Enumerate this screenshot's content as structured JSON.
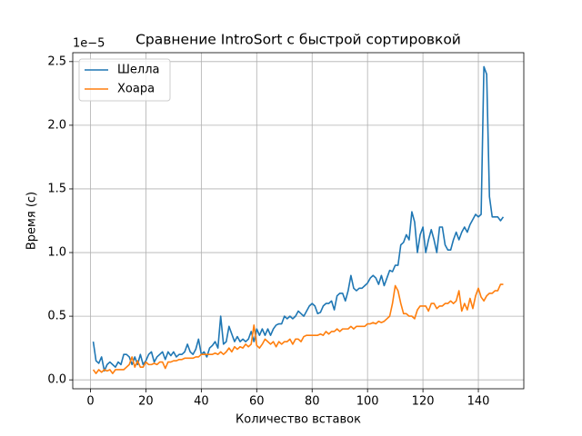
{
  "chart_data": {
    "type": "line",
    "title": "Сравнение IntroSort с быстрой сортировкой",
    "xlabel": "Количество вставок",
    "ylabel": "Время (с)",
    "y_offset_label": "1e−5",
    "legend": "upper left",
    "grid": true,
    "xlim": [
      -6.4,
      156.4
    ],
    "ylim": [
      -0.07,
      2.57
    ],
    "xticks": [
      0,
      20,
      40,
      60,
      80,
      100,
      120,
      140
    ],
    "yticks": [
      {
        "value": 0,
        "label": "0.0"
      },
      {
        "value": 0.5,
        "label": "0.5"
      },
      {
        "value": 1,
        "label": "1.0"
      },
      {
        "value": 1.5,
        "label": "1.5"
      },
      {
        "value": 2,
        "label": "2.0"
      },
      {
        "value": 2.5,
        "label": "2.5"
      }
    ],
    "x": [
      1,
      2,
      3,
      4,
      5,
      6,
      7,
      8,
      9,
      10,
      11,
      12,
      13,
      14,
      15,
      16,
      17,
      18,
      19,
      20,
      21,
      22,
      23,
      24,
      25,
      26,
      27,
      28,
      29,
      30,
      31,
      32,
      33,
      34,
      35,
      36,
      37,
      38,
      39,
      40,
      41,
      42,
      43,
      44,
      45,
      46,
      47,
      48,
      49,
      50,
      51,
      52,
      53,
      54,
      55,
      56,
      57,
      58,
      59,
      60,
      61,
      62,
      63,
      64,
      65,
      66,
      67,
      68,
      69,
      70,
      71,
      72,
      73,
      74,
      75,
      76,
      77,
      78,
      79,
      80,
      81,
      82,
      83,
      84,
      85,
      86,
      87,
      88,
      89,
      90,
      91,
      92,
      93,
      94,
      95,
      96,
      97,
      98,
      99,
      100,
      101,
      102,
      103,
      104,
      105,
      106,
      107,
      108,
      109,
      110,
      111,
      112,
      113,
      114,
      115,
      116,
      117,
      118,
      119,
      120,
      121,
      122,
      123,
      124,
      125,
      126,
      127,
      128,
      129,
      130,
      131,
      132,
      133,
      134,
      135,
      136,
      137,
      138,
      139,
      140,
      141,
      142,
      143,
      144,
      145,
      146,
      147,
      148,
      149
    ],
    "series": [
      {
        "name": "Шелла",
        "color": "#1f77b4",
        "values": [
          0.3,
          0.15,
          0.13,
          0.18,
          0.07,
          0.12,
          0.14,
          0.12,
          0.1,
          0.14,
          0.12,
          0.2,
          0.2,
          0.18,
          0.12,
          0.18,
          0.12,
          0.2,
          0.12,
          0.15,
          0.2,
          0.22,
          0.14,
          0.18,
          0.2,
          0.22,
          0.16,
          0.22,
          0.19,
          0.22,
          0.18,
          0.2,
          0.2,
          0.22,
          0.28,
          0.22,
          0.2,
          0.24,
          0.32,
          0.2,
          0.22,
          0.18,
          0.25,
          0.27,
          0.3,
          0.25,
          0.5,
          0.28,
          0.3,
          0.42,
          0.36,
          0.3,
          0.34,
          0.3,
          0.32,
          0.3,
          0.32,
          0.38,
          0.3,
          0.4,
          0.35,
          0.4,
          0.35,
          0.4,
          0.35,
          0.4,
          0.43,
          0.44,
          0.44,
          0.5,
          0.48,
          0.5,
          0.48,
          0.5,
          0.54,
          0.52,
          0.5,
          0.54,
          0.58,
          0.6,
          0.58,
          0.52,
          0.53,
          0.58,
          0.6,
          0.6,
          0.62,
          0.55,
          0.66,
          0.68,
          0.68,
          0.62,
          0.7,
          0.82,
          0.72,
          0.7,
          0.72,
          0.72,
          0.74,
          0.76,
          0.8,
          0.82,
          0.8,
          0.75,
          0.82,
          0.74,
          0.8,
          0.86,
          0.85,
          0.9,
          0.9,
          1.06,
          1.08,
          1.14,
          1.1,
          1.32,
          1.24,
          1.0,
          1.14,
          1.2,
          1.0,
          1.1,
          1.18,
          1.1,
          1.0,
          1.2,
          1.2,
          1.06,
          1.02,
          1.02,
          1.1,
          1.16,
          1.1,
          1.16,
          1.2,
          1.16,
          1.22,
          1.26,
          1.3,
          1.28,
          1.3,
          2.46,
          2.4,
          1.44,
          1.28,
          1.28,
          1.28,
          1.25,
          1.28
        ]
      },
      {
        "name": "Хоара",
        "color": "#ff7f0e",
        "values": [
          0.08,
          0.05,
          0.08,
          0.06,
          0.08,
          0.07,
          0.08,
          0.05,
          0.08,
          0.08,
          0.08,
          0.08,
          0.1,
          0.12,
          0.18,
          0.1,
          0.15,
          0.1,
          0.1,
          0.14,
          0.12,
          0.12,
          0.13,
          0.12,
          0.14,
          0.14,
          0.09,
          0.14,
          0.14,
          0.15,
          0.15,
          0.16,
          0.16,
          0.17,
          0.17,
          0.17,
          0.17,
          0.18,
          0.18,
          0.2,
          0.2,
          0.2,
          0.2,
          0.2,
          0.21,
          0.2,
          0.22,
          0.2,
          0.22,
          0.25,
          0.22,
          0.26,
          0.24,
          0.26,
          0.25,
          0.28,
          0.26,
          0.28,
          0.43,
          0.27,
          0.25,
          0.28,
          0.32,
          0.3,
          0.28,
          0.3,
          0.26,
          0.3,
          0.28,
          0.3,
          0.3,
          0.32,
          0.28,
          0.32,
          0.32,
          0.3,
          0.34,
          0.35,
          0.35,
          0.35,
          0.35,
          0.35,
          0.36,
          0.35,
          0.38,
          0.36,
          0.38,
          0.38,
          0.4,
          0.38,
          0.4,
          0.4,
          0.4,
          0.42,
          0.4,
          0.42,
          0.42,
          0.42,
          0.42,
          0.44,
          0.44,
          0.45,
          0.44,
          0.46,
          0.45,
          0.46,
          0.48,
          0.5,
          0.6,
          0.74,
          0.7,
          0.6,
          0.52,
          0.52,
          0.5,
          0.5,
          0.48,
          0.55,
          0.58,
          0.58,
          0.58,
          0.54,
          0.6,
          0.6,
          0.56,
          0.58,
          0.58,
          0.6,
          0.6,
          0.62,
          0.6,
          0.62,
          0.7,
          0.54,
          0.6,
          0.55,
          0.64,
          0.56,
          0.66,
          0.72,
          0.65,
          0.62,
          0.66,
          0.68,
          0.68,
          0.7,
          0.7,
          0.75,
          0.75
        ]
      }
    ]
  }
}
